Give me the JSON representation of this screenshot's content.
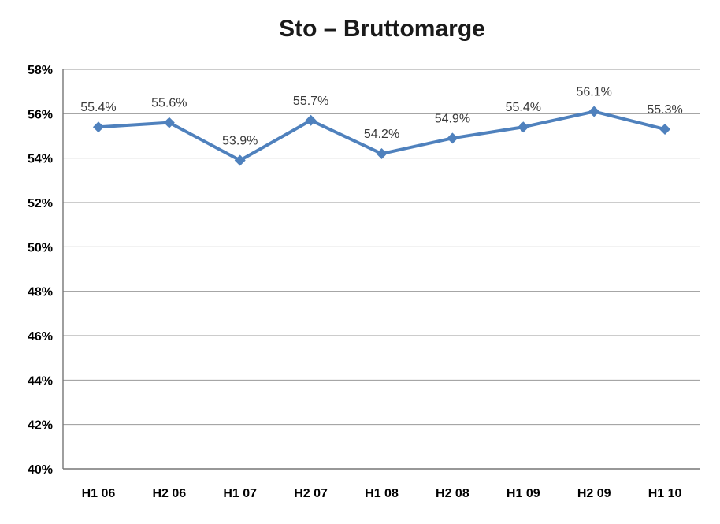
{
  "chart_data": {
    "type": "line",
    "title": "Sto – Bruttomarge",
    "categories": [
      "H1 06",
      "H2 06",
      "H1 07",
      "H2 07",
      "H1 08",
      "H2 08",
      "H1 09",
      "H2 09",
      "H1 10"
    ],
    "values": [
      55.4,
      55.6,
      53.9,
      55.7,
      54.2,
      54.9,
      55.4,
      56.1,
      55.3
    ],
    "data_labels": [
      "55.4%",
      "55.6%",
      "53.9%",
      "55.7%",
      "54.2%",
      "54.9%",
      "55.4%",
      "56.1%",
      "55.3%"
    ],
    "xlabel": "",
    "ylabel": "",
    "ylim": [
      40,
      58
    ],
    "ytick_step": 2,
    "ytick_labels": [
      "40%",
      "42%",
      "44%",
      "46%",
      "48%",
      "50%",
      "52%",
      "54%",
      "56%",
      "58%"
    ],
    "grid": true,
    "legend": "none",
    "marker": "diamond",
    "colors": {
      "series": "#4F81BD",
      "gridline": "#9A9A9A",
      "axis": "#767676",
      "title_text": "#1a1a1a",
      "tick_text": "#000000",
      "data_label_text": "#3A3A3A",
      "background": "#FFFFFF"
    }
  }
}
